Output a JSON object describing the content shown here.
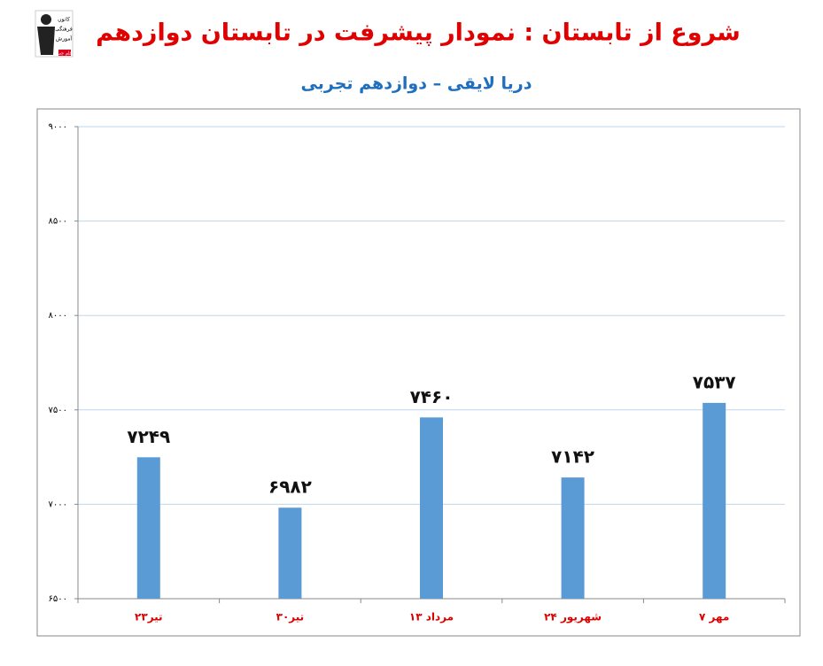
{
  "logo": {
    "lines": [
      "کانون",
      "فرهنگی",
      "آموزش",
      "قلم چی"
    ]
  },
  "chart_data": {
    "type": "bar",
    "title": "شروع از تابستان : نمودار پیشرفت در تابستان دوازدهم",
    "subtitle": "دریا لایقی – دوازدهم تجربی",
    "categories": [
      "۲۳تیر",
      "۳۰تیر",
      "۱۳ مرداد",
      "۲۴ شهریور",
      "۷ مهر"
    ],
    "values": [
      7249,
      6982,
      7460,
      7142,
      7537
    ],
    "value_labels": [
      "۷۲۴۹",
      "۶۹۸۲",
      "۷۴۶۰",
      "۷۱۴۲",
      "۷۵۳۷"
    ],
    "color": "#5b9bd5",
    "ylim": [
      6500,
      9000
    ],
    "yticks": [
      {
        "value": 6500,
        "label": "۶۵۰۰"
      },
      {
        "value": 7000,
        "label": "۷۰۰۰"
      },
      {
        "value": 7500,
        "label": "۷۵۰۰"
      },
      {
        "value": 8000,
        "label": "۸۰۰۰"
      },
      {
        "value": 8500,
        "label": "۸۵۰۰"
      },
      {
        "value": 9000,
        "label": "۹۰۰۰"
      }
    ],
    "grid": true
  }
}
